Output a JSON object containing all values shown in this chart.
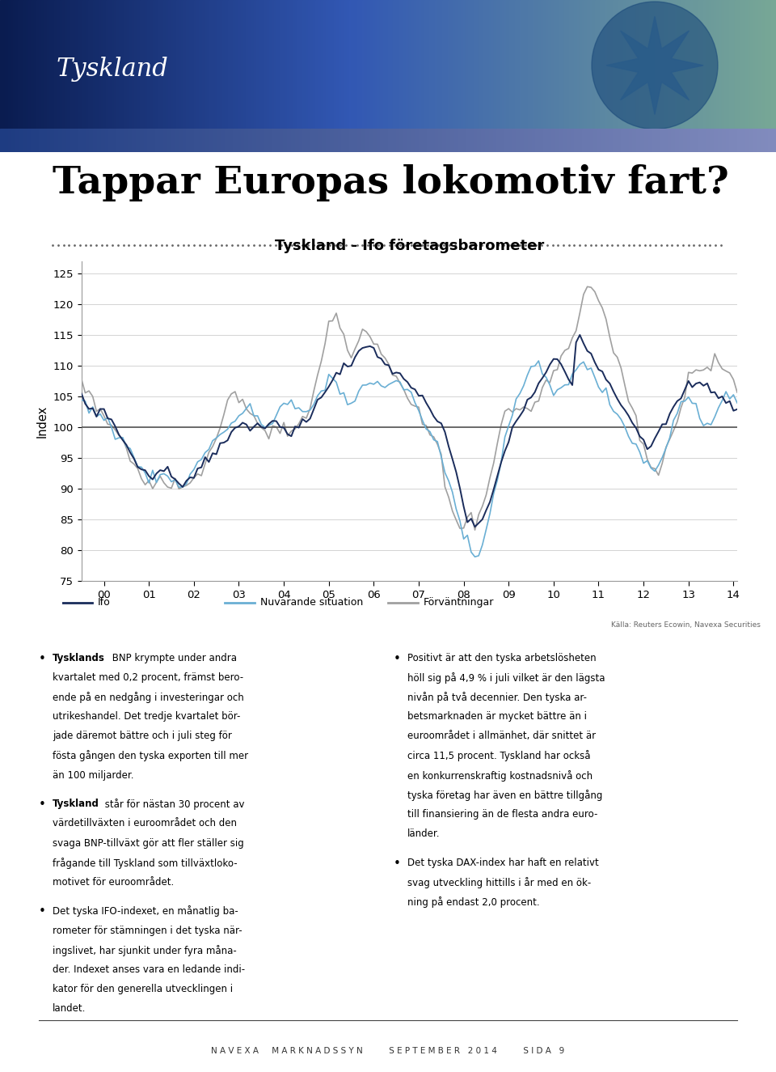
{
  "header_text": "Tyskland",
  "page_title": "Tappar Europas lokomotiv fart?",
  "chart_title": "Tyskland - Ifo företagsbarometer",
  "ylabel": "Index",
  "ylim": [
    75,
    127
  ],
  "yticks": [
    75,
    80,
    85,
    90,
    95,
    100,
    105,
    110,
    115,
    120,
    125
  ],
  "xtick_labels": [
    "00",
    "01",
    "02",
    "03",
    "04",
    "05",
    "06",
    "07",
    "08",
    "09",
    "10",
    "11",
    "12",
    "13",
    "14"
  ],
  "hline_y": 100,
  "line_ifo_color": "#1a2c5b",
  "line_nuvarande_color": "#6aafd4",
  "line_forvantningar_color": "#a0a0a0",
  "source_text": "Källa: Reuters Ecowin, Navexa Securities",
  "legend_labels": [
    "Ifo",
    "Nuvarande situation",
    "Förväntningar"
  ],
  "footer_text": "N A V E X A     M A R K N A D S S Y N          S E P T E M B E R   2 0 1 4          S I D A   9"
}
